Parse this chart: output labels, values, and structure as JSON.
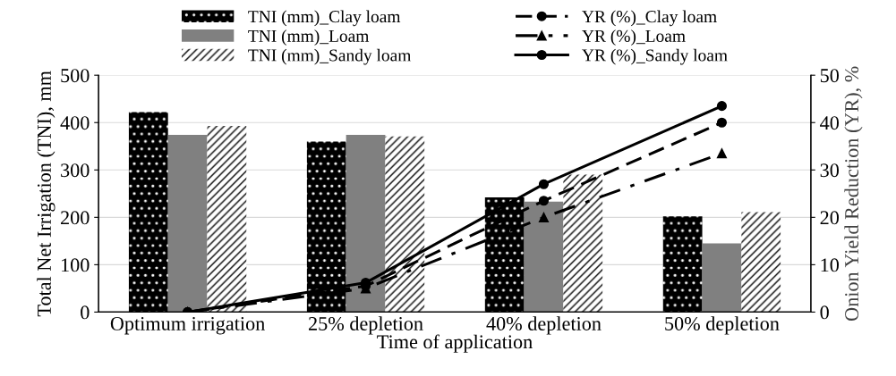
{
  "chart_data": {
    "type": "bar",
    "xlabel": "Time of application",
    "ylabel": "Total Net Irrigation (TNI), mm",
    "y2label": "Onion Yield Reduction (YR), %",
    "categories": [
      "Optimum irrigation",
      "25% depletion",
      "40% depletion",
      "50% depletion"
    ],
    "series": [
      {
        "name": "TNI (mm)_Clay loam",
        "color": "#000000",
        "values": [
          422,
          360,
          242,
          202
        ]
      },
      {
        "name": "TNI (mm)_Loam",
        "color": "#808080",
        "values": [
          374,
          374,
          233,
          145
        ]
      },
      {
        "name": "TNI (mm)_Sandy loam",
        "color": "#ffffff",
        "values": [
          393,
          371,
          290,
          211
        ]
      },
      {
        "name": "YR (%)_Clay loam",
        "type": "line",
        "axis": "y2",
        "color": "#000000",
        "marker": "circle",
        "line_style": "dashed",
        "values": [
          0,
          5.5,
          23.5,
          40
        ]
      },
      {
        "name": "YR (%)_Loam",
        "type": "line",
        "axis": "y2",
        "color": "#000000",
        "marker": "triangle",
        "line_style": "dashdot",
        "values": [
          0,
          5,
          20,
          33.5
        ]
      },
      {
        "name": "YR (%)_Sandy loam",
        "type": "line",
        "axis": "y2",
        "color": "#000000",
        "marker": "circle",
        "line_style": "solid",
        "values": [
          0,
          6.2,
          27,
          43.5
        ]
      }
    ],
    "ylim": [
      0,
      500
    ],
    "yticks": [
      0,
      100,
      200,
      300,
      400,
      500
    ],
    "y2lim": [
      0,
      50
    ],
    "y2ticks": [
      0,
      10,
      20,
      30,
      40,
      50
    ],
    "grid": "y",
    "legend": "top"
  }
}
